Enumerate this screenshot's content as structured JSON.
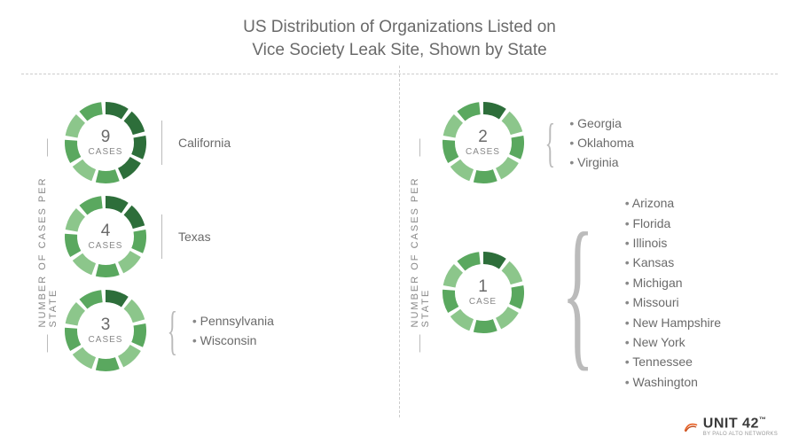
{
  "title_line1": "US Distribution of Organizations Listed on",
  "title_line2": "Vice Society Leak Site, Shown by State",
  "vlabel": "NUMBER OF CASES PER STATE",
  "cases_word": "CASES",
  "case_word": "CASE",
  "footer_brand": "UNIT 42",
  "footer_byline": "BY PALO ALTO NETWORKS",
  "colors": {
    "dark": "#2d6e3a",
    "mid": "#5aa85f",
    "light": "#8cc68b",
    "text": "#6a6a6a"
  },
  "ring": {
    "segments": 9,
    "gap_deg": 6,
    "outer_r": 46,
    "inner_r": 32
  },
  "left": [
    {
      "num": "9",
      "dark": 4,
      "states": [
        "California"
      ]
    },
    {
      "num": "4",
      "dark": 2,
      "states": [
        "Texas"
      ]
    },
    {
      "num": "3",
      "dark": 1,
      "states": [
        "Pennsylvania",
        "Wisconsin"
      ]
    }
  ],
  "right": [
    {
      "num": "2",
      "dark": 1,
      "states": [
        "Georgia",
        "Oklahoma",
        "Virginia"
      ]
    },
    {
      "num": "1",
      "dark": 1,
      "word": "CASE",
      "states": [
        "Arizona",
        "Florida",
        "Illinois",
        "Kansas",
        "Michigan",
        "Missouri",
        "New Hampshire",
        "New York",
        "Tennessee",
        "Washington"
      ]
    }
  ]
}
